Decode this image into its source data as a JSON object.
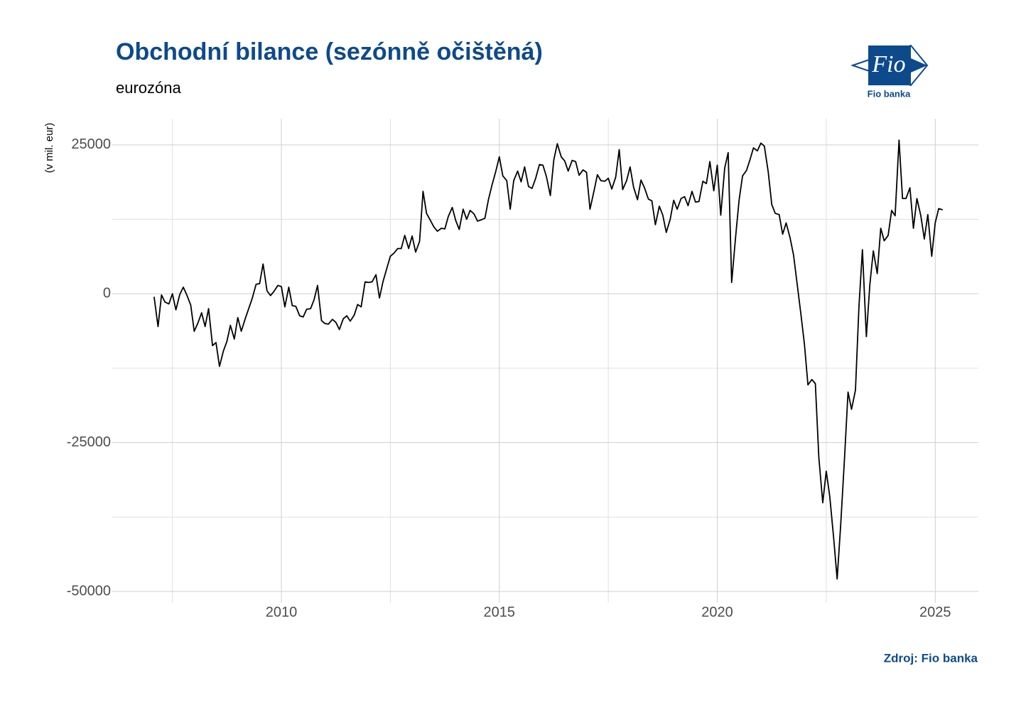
{
  "chart_data": {
    "type": "line",
    "title": "Obchodní bilance (sezónně očištěná)",
    "subtitle": "eurozóna",
    "y_label": "(v mil. eur)",
    "source": "Zdroj: Fio banka",
    "logo_text": "Fio",
    "logo_caption": "Fio banka",
    "xlim": [
      2006.12,
      2025.99
    ],
    "xticks": [
      2010,
      2015,
      2020,
      2025
    ],
    "xminorticks": [
      2007.5,
      2012.5,
      2017.5,
      2022.5
    ],
    "ylim": [
      -51900,
      29400
    ],
    "yticks": [
      -50000,
      -25000,
      0,
      25000
    ],
    "yminorticks": [
      -37500,
      -12500,
      12500
    ],
    "grid": true,
    "x": [
      2007.08,
      2007.17,
      2007.25,
      2007.33,
      2007.42,
      2007.5,
      2007.58,
      2007.67,
      2007.75,
      2007.83,
      2007.92,
      2008.0,
      2008.08,
      2008.17,
      2008.25,
      2008.33,
      2008.42,
      2008.5,
      2008.58,
      2008.67,
      2008.75,
      2008.83,
      2008.92,
      2009.0,
      2009.08,
      2009.17,
      2009.25,
      2009.33,
      2009.42,
      2009.5,
      2009.58,
      2009.67,
      2009.75,
      2009.83,
      2009.92,
      2010.0,
      2010.08,
      2010.17,
      2010.25,
      2010.33,
      2010.42,
      2010.5,
      2010.58,
      2010.67,
      2010.75,
      2010.83,
      2010.92,
      2011.0,
      2011.08,
      2011.17,
      2011.25,
      2011.33,
      2011.42,
      2011.5,
      2011.58,
      2011.67,
      2011.75,
      2011.83,
      2011.92,
      2012.0,
      2012.08,
      2012.17,
      2012.25,
      2012.33,
      2012.42,
      2012.5,
      2012.58,
      2012.67,
      2012.75,
      2012.83,
      2012.92,
      2013.0,
      2013.08,
      2013.17,
      2013.25,
      2013.33,
      2013.42,
      2013.5,
      2013.58,
      2013.67,
      2013.75,
      2013.83,
      2013.92,
      2014.0,
      2014.08,
      2014.17,
      2014.25,
      2014.33,
      2014.42,
      2014.5,
      2014.58,
      2014.67,
      2014.75,
      2014.83,
      2014.92,
      2015.0,
      2015.08,
      2015.17,
      2015.25,
      2015.33,
      2015.42,
      2015.5,
      2015.58,
      2015.67,
      2015.75,
      2015.83,
      2015.92,
      2016.0,
      2016.08,
      2016.17,
      2016.25,
      2016.33,
      2016.42,
      2016.5,
      2016.58,
      2016.67,
      2016.75,
      2016.83,
      2016.92,
      2017.0,
      2017.08,
      2017.17,
      2017.25,
      2017.33,
      2017.42,
      2017.5,
      2017.58,
      2017.67,
      2017.75,
      2017.83,
      2017.92,
      2018.0,
      2018.08,
      2018.17,
      2018.25,
      2018.33,
      2018.42,
      2018.5,
      2018.58,
      2018.67,
      2018.75,
      2018.83,
      2018.92,
      2019.0,
      2019.08,
      2019.17,
      2019.25,
      2019.33,
      2019.42,
      2019.5,
      2019.58,
      2019.67,
      2019.75,
      2019.83,
      2019.92,
      2020.0,
      2020.08,
      2020.17,
      2020.25,
      2020.33,
      2020.42,
      2020.5,
      2020.58,
      2020.67,
      2020.75,
      2020.83,
      2020.92,
      2021.0,
      2021.08,
      2021.17,
      2021.25,
      2021.33,
      2021.42,
      2021.5,
      2021.58,
      2021.67,
      2021.75,
      2021.83,
      2021.92,
      2022.0,
      2022.08,
      2022.17,
      2022.25,
      2022.33,
      2022.42,
      2022.5,
      2022.58,
      2022.67,
      2022.75,
      2022.83,
      2022.92,
      2023.0,
      2023.08,
      2023.17,
      2023.25,
      2023.33,
      2023.42,
      2023.5,
      2023.58,
      2023.67,
      2023.75,
      2023.83,
      2023.92,
      2024.0,
      2024.08,
      2024.17,
      2024.25,
      2024.33,
      2024.42,
      2024.5,
      2024.58,
      2024.67,
      2024.75,
      2024.83,
      2024.92,
      2025.0,
      2025.08,
      2025.17
    ],
    "series": [
      {
        "name": "Obchodní bilance",
        "color": "#000000",
        "values": [
          -500,
          -5500,
          -200,
          -1400,
          -1700,
          0,
          -2700,
          -100,
          1100,
          -200,
          -1900,
          -6300,
          -5000,
          -3200,
          -5500,
          -2500,
          -8700,
          -8200,
          -12200,
          -9600,
          -8000,
          -5300,
          -7600,
          -4000,
          -6300,
          -4200,
          -2500,
          -800,
          1600,
          1700,
          5000,
          500,
          -300,
          400,
          1400,
          1200,
          -2200,
          1100,
          -2000,
          -2100,
          -3700,
          -3900,
          -2600,
          -2500,
          -1000,
          1400,
          -4500,
          -5000,
          -5100,
          -4300,
          -4800,
          -6000,
          -4200,
          -3700,
          -4600,
          -3600,
          -1800,
          -2200,
          2000,
          1900,
          2000,
          3200,
          -700,
          2000,
          4300,
          6300,
          6800,
          7600,
          7600,
          9800,
          7600,
          9700,
          7000,
          8800,
          17200,
          13500,
          12300,
          11200,
          10500,
          11000,
          10900,
          13000,
          14500,
          12300,
          10800,
          14200,
          12500,
          14000,
          13400,
          12200,
          12400,
          12700,
          15800,
          18200,
          20600,
          23000,
          19800,
          19000,
          14200,
          19000,
          20600,
          18800,
          21300,
          18000,
          17700,
          19300,
          21700,
          21600,
          19700,
          16500,
          22500,
          25200,
          23000,
          22300,
          20600,
          22400,
          22200,
          19900,
          20800,
          20400,
          14200,
          17200,
          20000,
          19000,
          18900,
          19400,
          17600,
          19600,
          24200,
          17500,
          19000,
          21300,
          17900,
          15800,
          19100,
          17800,
          15900,
          15600,
          11600,
          14700,
          13200,
          10300,
          12500,
          15700,
          14200,
          16000,
          16300,
          14800,
          17200,
          15400,
          15500,
          18900,
          18500,
          22200,
          17300,
          21600,
          13200,
          21100,
          23700,
          1900,
          9500,
          15700,
          19800,
          20700,
          22500,
          24500,
          24000,
          25300,
          24800,
          20400,
          15000,
          13500,
          13300,
          10000,
          11900,
          9400,
          6500,
          1800,
          -3500,
          -8500,
          -15300,
          -14400,
          -15100,
          -27500,
          -35100,
          -29800,
          -34000,
          -41000,
          -47900,
          -39000,
          -27500,
          -16500,
          -19400,
          -16200,
          -2200,
          7400,
          -7200,
          1500,
          7200,
          3400,
          11000,
          8900,
          9800,
          14000,
          13100,
          25800,
          16000,
          16000,
          17800,
          11000,
          16000,
          13100,
          9200,
          13300,
          6300,
          11900,
          14300,
          14100
        ]
      }
    ]
  }
}
